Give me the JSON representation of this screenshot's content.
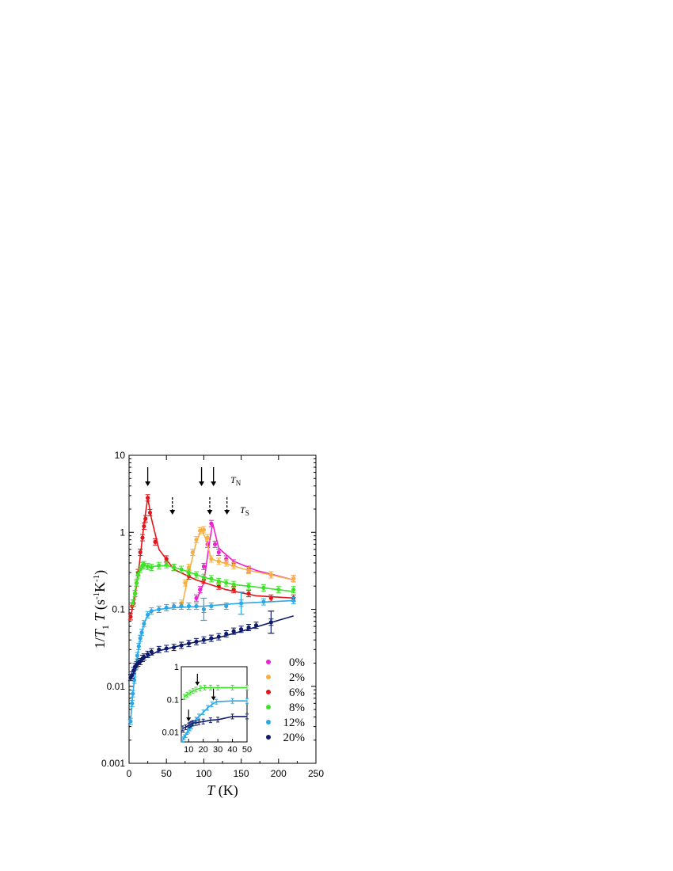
{
  "chart_data": [
    {
      "type": "scatter",
      "xlabel_italic": "T",
      "xlabel_unit": " (K)",
      "ylabel": {
        "prefix": "1/",
        "T": "T",
        "sub1": "1",
        "T2": "T",
        "units_open": " (s",
        "exp1": "-1",
        "K": "K",
        "exp2": "-1",
        "close": ")"
      },
      "xlim": [
        0,
        250
      ],
      "ylim": [
        0.001,
        10
      ],
      "yscale": "log",
      "x_ticks": [
        0,
        50,
        100,
        150,
        200,
        250
      ],
      "x_tick_labels": [
        "0",
        "50",
        "100",
        "150",
        "200",
        "250"
      ],
      "y_ticks": [
        0.001,
        0.01,
        0.1,
        1,
        10
      ],
      "y_tick_labels": [
        "0.001",
        "0.01",
        "0.1",
        "1",
        "10"
      ],
      "legend_position": "lower-right",
      "annotations": [
        {
          "label_italic": "T",
          "label_sub": "N",
          "arrow_style": "solid",
          "arrow_x": [
            25,
            97,
            113
          ]
        },
        {
          "label_italic": "T",
          "label_sub": "S",
          "arrow_style": "dashed",
          "arrow_x": [
            58,
            108,
            131
          ]
        }
      ],
      "series": [
        {
          "name": "0%",
          "color": "#ee22cc",
          "x": [
            90,
            95,
            100,
            105,
            110,
            115,
            120,
            130,
            140,
            160,
            190,
            220
          ],
          "y": [
            0.14,
            0.18,
            0.36,
            0.7,
            1.3,
            0.7,
            0.55,
            0.45,
            0.4,
            0.33,
            0.28,
            0.25
          ],
          "fit_x": [
            90,
            100,
            108,
            112,
            120,
            140,
            170,
            200,
            220
          ],
          "fit_y": [
            0.13,
            0.22,
            0.8,
            1.3,
            0.62,
            0.42,
            0.32,
            0.27,
            0.24
          ]
        },
        {
          "name": "2%",
          "color": "#f6b042",
          "x": [
            70,
            75,
            80,
            85,
            90,
            95,
            100,
            105,
            110,
            120,
            130,
            140,
            160,
            190,
            220
          ],
          "y": [
            0.12,
            0.22,
            0.35,
            0.55,
            0.8,
            1.05,
            1.08,
            0.85,
            0.45,
            0.42,
            0.4,
            0.37,
            0.32,
            0.28,
            0.25
          ],
          "fit_x": [
            70,
            80,
            90,
            97,
            103,
            110,
            130,
            160,
            190,
            220
          ],
          "fit_y": [
            0.1,
            0.3,
            0.75,
            1.1,
            0.8,
            0.45,
            0.39,
            0.32,
            0.28,
            0.24
          ]
        },
        {
          "name": "6%",
          "color": "#e2161a",
          "x": [
            2,
            4,
            6,
            8,
            10,
            12,
            15,
            18,
            20,
            22,
            25,
            28,
            35,
            50,
            60,
            80,
            100,
            120,
            140,
            160,
            190,
            220
          ],
          "y": [
            0.08,
            0.11,
            0.12,
            0.16,
            0.22,
            0.3,
            0.55,
            0.85,
            1.2,
            1.5,
            2.8,
            1.8,
            0.75,
            0.45,
            0.35,
            0.27,
            0.24,
            0.2,
            0.18,
            0.16,
            0.14,
            0.14
          ],
          "fit_x": [
            2,
            8,
            14,
            20,
            25,
            30,
            40,
            60,
            90,
            130,
            170,
            220
          ],
          "fit_y": [
            0.08,
            0.15,
            0.4,
            1.3,
            2.8,
            1.5,
            0.6,
            0.33,
            0.24,
            0.18,
            0.15,
            0.14
          ]
        },
        {
          "name": "8%",
          "color": "#3ee22a",
          "x": [
            5,
            8,
            10,
            12,
            15,
            18,
            20,
            25,
            30,
            40,
            50,
            60,
            70,
            80,
            90,
            100,
            110,
            120,
            130,
            140,
            160,
            180,
            200,
            220
          ],
          "y": [
            0.12,
            0.16,
            0.22,
            0.28,
            0.33,
            0.37,
            0.38,
            0.36,
            0.35,
            0.37,
            0.38,
            0.35,
            0.33,
            0.3,
            0.28,
            0.26,
            0.25,
            0.23,
            0.22,
            0.21,
            0.2,
            0.19,
            0.18,
            0.18
          ],
          "fit_x": [
            5,
            10,
            15,
            20,
            30,
            50,
            70,
            100,
            140,
            180,
            220
          ],
          "fit_y": [
            0.12,
            0.22,
            0.33,
            0.37,
            0.36,
            0.37,
            0.33,
            0.26,
            0.21,
            0.19,
            0.17
          ]
        },
        {
          "name": "12%",
          "color": "#2aa8e8",
          "x": [
            2,
            4,
            5,
            7,
            9,
            11,
            13,
            15,
            17,
            20,
            25,
            30,
            40,
            50,
            60,
            70,
            80,
            90,
            100,
            110,
            130,
            150,
            180,
            220
          ],
          "y": [
            0.0035,
            0.006,
            0.008,
            0.012,
            0.018,
            0.025,
            0.033,
            0.042,
            0.05,
            0.065,
            0.085,
            0.095,
            0.1,
            0.105,
            0.11,
            0.11,
            0.11,
            0.11,
            0.1,
            0.11,
            0.11,
            0.12,
            0.125,
            0.13
          ],
          "fit_x": [
            2,
            5,
            8,
            12,
            16,
            20,
            25,
            30,
            40,
            60,
            100,
            150,
            220
          ],
          "fit_y": [
            0.0035,
            0.008,
            0.014,
            0.028,
            0.045,
            0.065,
            0.085,
            0.095,
            0.1,
            0.105,
            0.11,
            0.12,
            0.13
          ],
          "err_x": [
            100,
            150
          ],
          "err_y": [
            0.1,
            0.12
          ]
        },
        {
          "name": "20%",
          "color": "#0e1a6a",
          "x": [
            2,
            4,
            6,
            8,
            10,
            12,
            15,
            18,
            20,
            25,
            30,
            40,
            50,
            60,
            70,
            80,
            90,
            100,
            110,
            120,
            130,
            140,
            150,
            160,
            170,
            190
          ],
          "y": [
            0.013,
            0.014,
            0.016,
            0.018,
            0.019,
            0.02,
            0.021,
            0.023,
            0.024,
            0.026,
            0.028,
            0.03,
            0.031,
            0.032,
            0.034,
            0.036,
            0.038,
            0.04,
            0.042,
            0.044,
            0.048,
            0.052,
            0.055,
            0.058,
            0.062,
            0.068
          ],
          "fit_x": [
            2,
            10,
            20,
            40,
            80,
            120,
            160,
            200,
            220
          ],
          "fit_y": [
            0.012,
            0.018,
            0.023,
            0.029,
            0.036,
            0.043,
            0.055,
            0.072,
            0.082
          ],
          "err_x": [
            190
          ],
          "err_y": [
            0.068
          ]
        }
      ]
    },
    {
      "type": "scatter",
      "name": "inset",
      "xlim": [
        5,
        50
      ],
      "ylim": [
        0.005,
        1
      ],
      "yscale": "log",
      "x_ticks": [
        10,
        20,
        30,
        40,
        50
      ],
      "x_tick_labels": [
        "10",
        "20",
        "30",
        "40",
        "50"
      ],
      "y_ticks": [
        0.01,
        0.1,
        1
      ],
      "y_tick_labels": [
        "0.01",
        "0.1",
        "1"
      ],
      "arrows_x": [
        16,
        27,
        10
      ],
      "arrows_series": [
        "8%",
        "12%",
        "20%"
      ],
      "series": [
        {
          "name": "8%",
          "color": "#3ee22a",
          "x": [
            7,
            9,
            11,
            13,
            15,
            18,
            21,
            25,
            30,
            40,
            50
          ],
          "y": [
            0.12,
            0.14,
            0.16,
            0.18,
            0.2,
            0.22,
            0.23,
            0.23,
            0.23,
            0.23,
            0.23
          ]
        },
        {
          "name": "12%",
          "color": "#2aa8e8",
          "x": [
            6,
            7,
            8,
            9,
            10,
            11,
            12,
            13,
            15,
            17,
            20,
            23,
            26,
            29,
            40,
            50
          ],
          "y": [
            0.006,
            0.007,
            0.008,
            0.01,
            0.011,
            0.013,
            0.015,
            0.018,
            0.024,
            0.03,
            0.04,
            0.055,
            0.07,
            0.085,
            0.09,
            0.09
          ]
        },
        {
          "name": "20%",
          "color": "#0e1a6a",
          "x": [
            6,
            8,
            10,
            11,
            12,
            13,
            15,
            17,
            20,
            25,
            30,
            40,
            50
          ],
          "y": [
            0.013,
            0.014,
            0.016,
            0.017,
            0.018,
            0.019,
            0.019,
            0.02,
            0.021,
            0.023,
            0.024,
            0.03,
            0.03
          ]
        }
      ]
    }
  ]
}
